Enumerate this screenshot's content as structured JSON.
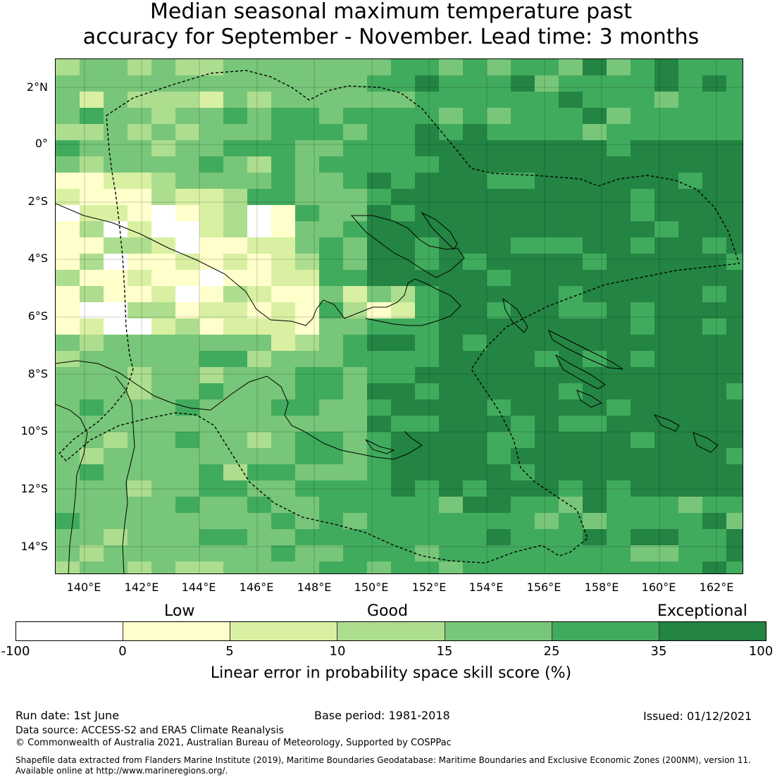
{
  "title": {
    "line1": "Median seasonal maximum temperature past",
    "line2": "accuracy for September - November. Lead time: 3 months"
  },
  "map": {
    "lat_labels": [
      "2°N",
      "0°",
      "2°S",
      "4°S",
      "6°S",
      "8°S",
      "10°S",
      "12°S",
      "14°S"
    ],
    "lon_labels": [
      "140°E",
      "142°E",
      "144°E",
      "146°E",
      "148°E",
      "150°E",
      "152°E",
      "154°E",
      "156°E",
      "158°E",
      "160°E",
      "162°E"
    ],
    "colors": {
      "white": "#ffffff",
      "c0_5": "#ffffcc",
      "c5_10": "#d9f0a3",
      "c10_15": "#addd8e",
      "c15_25": "#78c679",
      "c25_35": "#41ab5d",
      "c35_100": "#238443"
    }
  },
  "colorbar": {
    "categories": [
      "Low",
      "Good",
      "Exceptional"
    ],
    "ticks": [
      "-100",
      "0",
      "5",
      "10",
      "15",
      "25",
      "35",
      "100"
    ],
    "colors": [
      "#ffffff",
      "#ffffcc",
      "#d9f0a3",
      "#addd8e",
      "#78c679",
      "#41ab5d",
      "#238443"
    ],
    "label": "Linear error in probability space skill score (%)"
  },
  "footer": {
    "run_date": "Run date: 1st June",
    "base_period": "Base period: 1981-2018",
    "issued": "Issued: 01/12/2021",
    "data_source": "Data source: ACCESS-S2 and ERA5 Climate Reanalysis",
    "copyright": "© Commonwealth of Australia 2021, Australian Bureau of Meteorology, Supported by COSPPac",
    "shapefile_line1": "Shapefile data extracted from Flanders Marine Institute (2019), Maritime Boundaries Geodatabase: Maritime Boundaries and Exclusive Economic Zones (200NM), version 11.",
    "shapefile_line2": "Available online at http://www.marineregions.org/."
  }
}
